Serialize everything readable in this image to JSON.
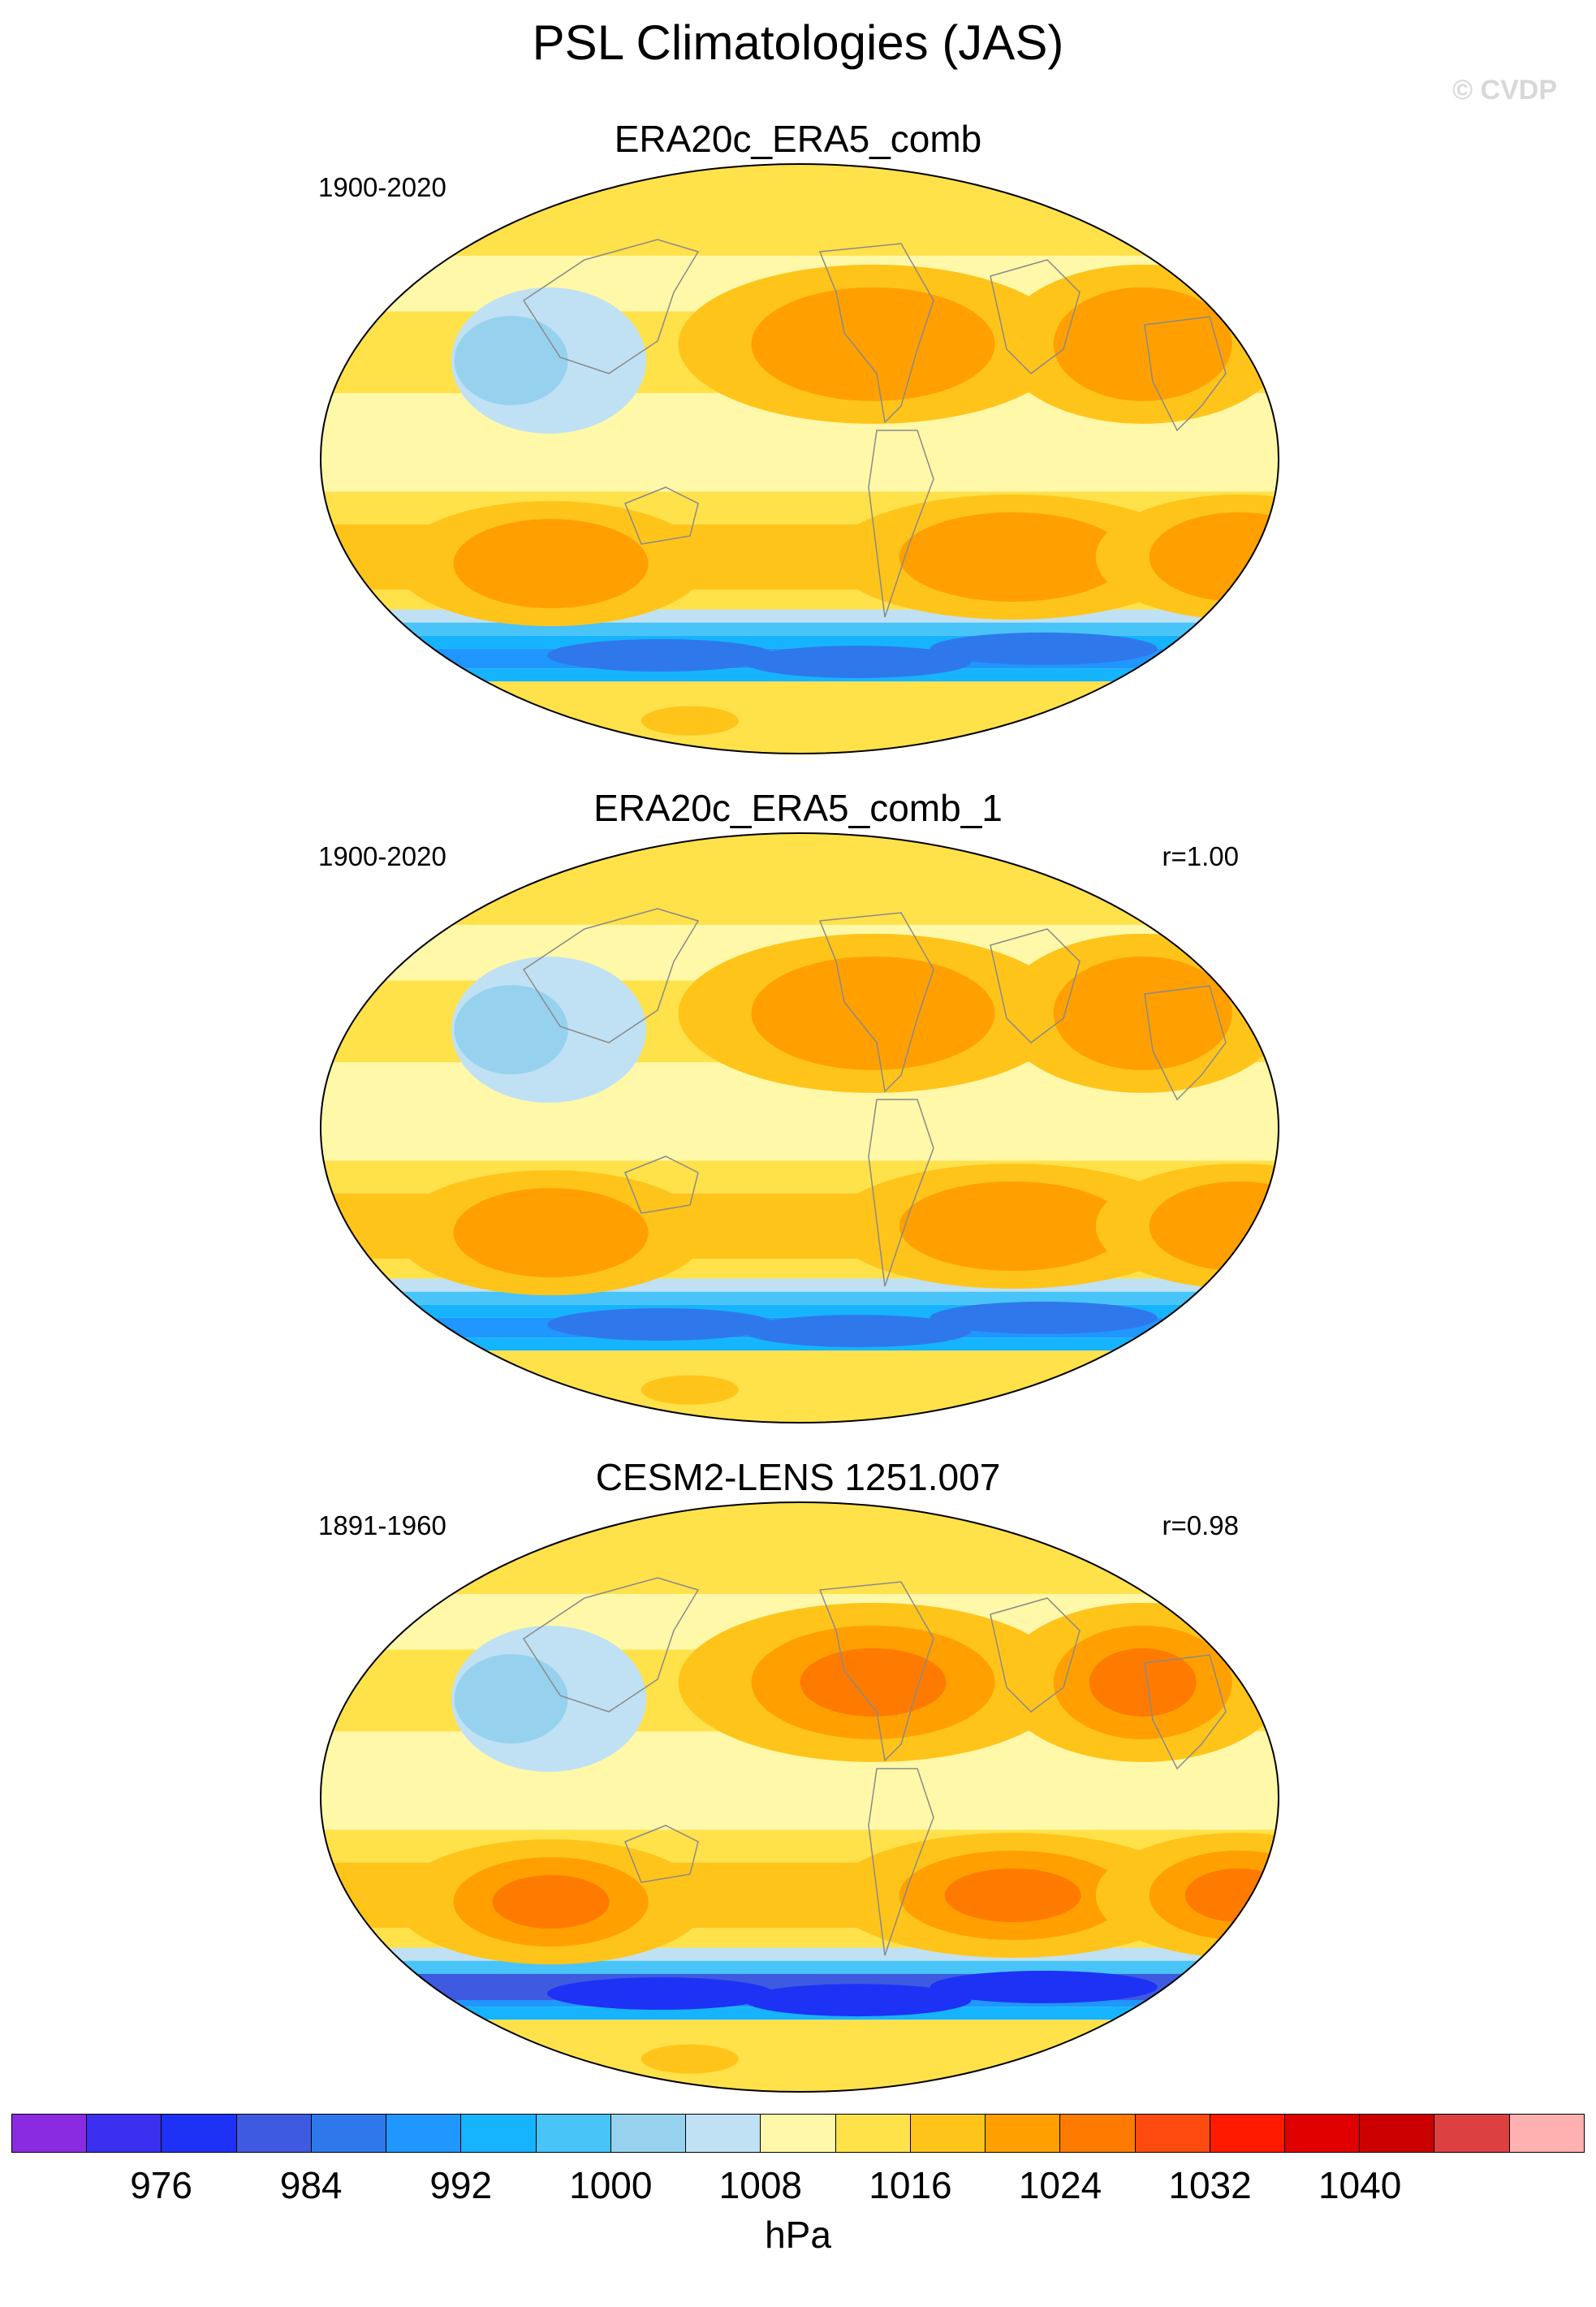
{
  "figure": {
    "title": "PSL Climatologies (JAS)",
    "copyright": "© CVDP"
  },
  "panels": [
    {
      "title": "ERA20c_ERA5_comb",
      "period": "1900-2020",
      "corr": ""
    },
    {
      "title": "ERA20c_ERA5_comb_1",
      "period": "1900-2020",
      "corr": "r=1.00"
    },
    {
      "title": "CESM2-LENS 1251.007",
      "period": "1891-1960",
      "corr": "r=0.98"
    }
  ],
  "colorbar": {
    "units": "hPa",
    "labels": [
      "976",
      "984",
      "992",
      "1000",
      "1008",
      "1016",
      "1024",
      "1032",
      "1040"
    ],
    "colors": [
      "#8a2be2",
      "#3b2ff0",
      "#1e32f5",
      "#3e5ae0",
      "#2f78ec",
      "#2096ff",
      "#16b4ff",
      "#48c4f8",
      "#96d2ee",
      "#bfe1f3",
      "#fff8a8",
      "#ffe14a",
      "#ffc41a",
      "#ffa000",
      "#ff7b00",
      "#ff4a10",
      "#ff1a00",
      "#e00000",
      "#cc0000",
      "#dd4040",
      "#ffb0b0"
    ],
    "level_min": 972,
    "level_step": 4
  }
}
